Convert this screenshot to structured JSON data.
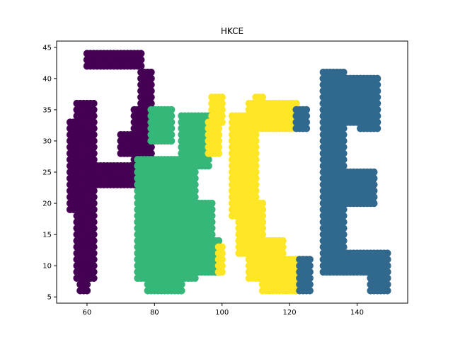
{
  "chart_data": {
    "type": "scatter",
    "title": "HKCE",
    "xlabel": "",
    "ylabel": "",
    "xlim": [
      51,
      155
    ],
    "ylim": [
      4.0,
      46.0
    ],
    "xticks": [
      60,
      80,
      100,
      120,
      140
    ],
    "yticks": [
      5,
      10,
      15,
      20,
      25,
      30,
      35,
      40,
      45
    ],
    "grid": false,
    "legend": "none",
    "marker_color_scale": [
      "#440154",
      "#31688e",
      "#35b779",
      "#fde725"
    ],
    "series": [
      {
        "color": "#440154",
        "regions": [
          {
            "x": [
              60,
              76
            ],
            "y": [
              42,
              44
            ]
          },
          {
            "x": [
              55,
              62
            ],
            "y": [
              19,
              33
            ]
          },
          {
            "x": [
              57,
              62
            ],
            "y": [
              8,
              36
            ]
          },
          {
            "x": [
              58,
              60
            ],
            "y": [
              6,
              8
            ]
          },
          {
            "x": [
              62,
              76
            ],
            "y": [
              23,
              26
            ]
          },
          {
            "x": [
              74,
              79
            ],
            "y": [
              26,
              35
            ]
          },
          {
            "x": [
              76,
              79
            ],
            "y": [
              35,
              41
            ]
          },
          {
            "x": [
              70,
              79
            ],
            "y": [
              28,
              31
            ]
          }
        ]
      },
      {
        "color": "#35b779",
        "regions": [
          {
            "x": [
              79,
              85
            ],
            "y": [
              30,
              35
            ]
          },
          {
            "x": [
              75,
              92
            ],
            "y": [
              8,
              27
            ]
          },
          {
            "x": [
              78,
              88
            ],
            "y": [
              6,
              12
            ]
          },
          {
            "x": [
              88,
              96
            ],
            "y": [
              26,
              34
            ]
          },
          {
            "x": [
              90,
              97
            ],
            "y": [
              12,
              20
            ]
          },
          {
            "x": [
              93,
              99
            ],
            "y": [
              9,
              14
            ]
          }
        ]
      },
      {
        "color": "#fde725",
        "regions": [
          {
            "x": [
              97,
              100
            ],
            "y": [
              33,
              37
            ]
          },
          {
            "x": [
              96,
              99
            ],
            "y": [
              28,
              33
            ]
          },
          {
            "x": [
              99,
              100
            ],
            "y": [
              9,
              13
            ]
          },
          {
            "x": [
              103,
              110
            ],
            "y": [
              18,
              34
            ]
          },
          {
            "x": [
              105,
              112
            ],
            "y": [
              12,
              20
            ]
          },
          {
            "x": [
              108,
              118
            ],
            "y": [
              8,
              14
            ]
          },
          {
            "x": [
              112,
              124
            ],
            "y": [
              6,
              11
            ]
          },
          {
            "x": [
              108,
              122
            ],
            "y": [
              32,
              36
            ]
          },
          {
            "x": [
              110,
              112
            ],
            "y": [
              36,
              37
            ]
          }
        ]
      },
      {
        "color": "#31688e",
        "regions": [
          {
            "x": [
              122,
              125
            ],
            "y": [
              32,
              35
            ]
          },
          {
            "x": [
              123,
              126
            ],
            "y": [
              6,
              11
            ]
          },
          {
            "x": [
              130,
              136
            ],
            "y": [
              9,
              41
            ]
          },
          {
            "x": [
              130,
              146
            ],
            "y": [
              33,
              40
            ]
          },
          {
            "x": [
              136,
              145
            ],
            "y": [
              20,
              25
            ]
          },
          {
            "x": [
              136,
              149
            ],
            "y": [
              9,
              12
            ]
          },
          {
            "x": [
              144,
              149
            ],
            "y": [
              6,
              10
            ]
          },
          {
            "x": [
              141,
              146
            ],
            "y": [
              32,
              35
            ]
          }
        ]
      }
    ]
  }
}
